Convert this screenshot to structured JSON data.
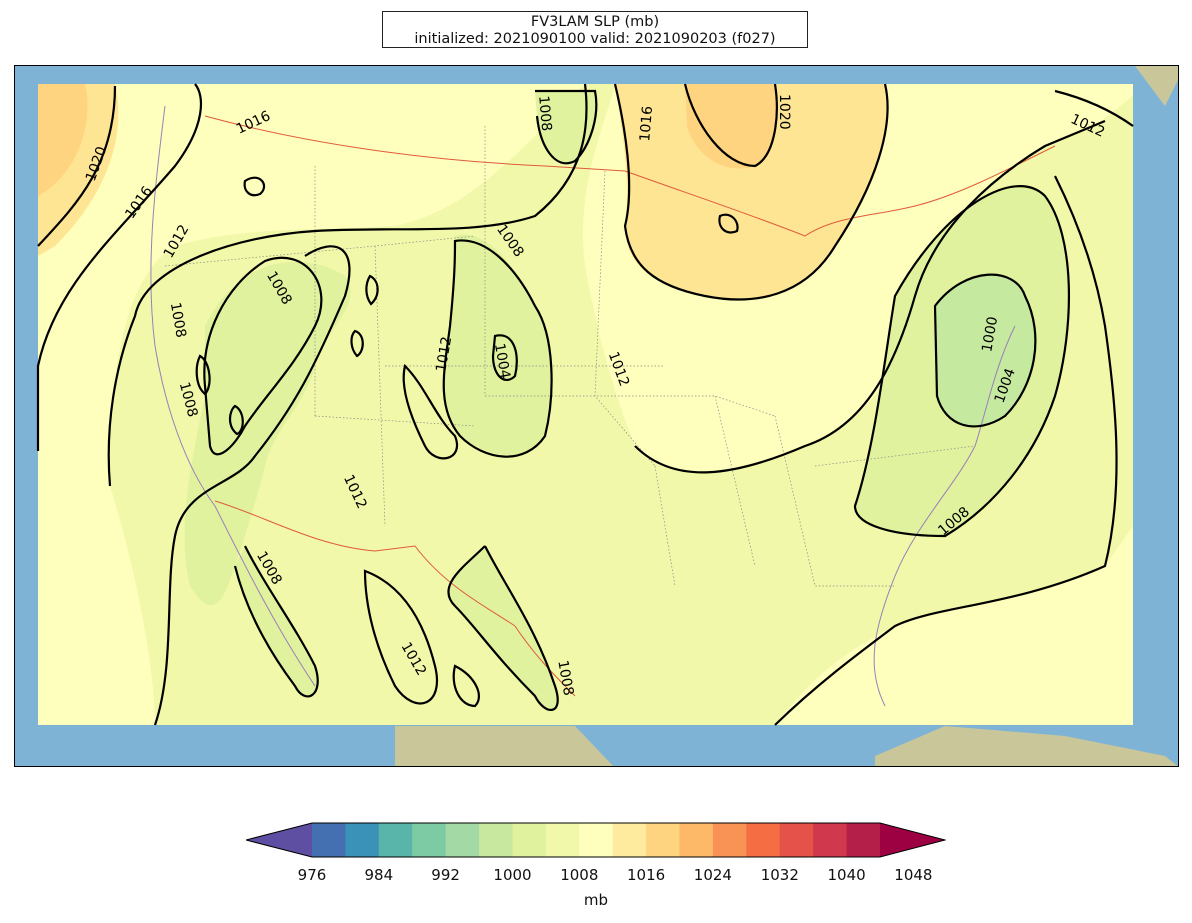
{
  "title": {
    "line1": "FV3LAM SLP (mb)",
    "line2": "initialized: 2021090100 valid: 2021090203 (f027)"
  },
  "map": {
    "contour_labels": [
      "1020",
      "1016",
      "1016",
      "1012",
      "1008",
      "1008",
      "1008",
      "1008",
      "1012",
      "1008",
      "1004",
      "1008",
      "1012",
      "1016",
      "1020",
      "1012",
      "1012",
      "1000",
      "1004",
      "1008",
      "1012",
      "1008"
    ],
    "colors": {
      "ocean": "#7fb3d5",
      "land": "#c9c79a",
      "fill_1016": "#fefebd",
      "fill_1012": "#f1f8a9",
      "fill_1008": "#e1f29e",
      "fill_1004": "#c6e9a0",
      "fill_1020": "#fee594",
      "fill_1024": "#fdd37c",
      "contour": "#000000",
      "border": "#e05a3a",
      "state": "#888888",
      "coast": "#9a7fb8"
    }
  },
  "colorbar": {
    "ticks": [
      "976",
      "984",
      "992",
      "1000",
      "1008",
      "1016",
      "1024",
      "1032",
      "1040",
      "1048"
    ],
    "label": "mb",
    "colors": [
      "#5e4fa2",
      "#4470b1",
      "#3b92b9",
      "#59b4aa",
      "#7ccba5",
      "#a3d9a4",
      "#c7e89e",
      "#e1f29e",
      "#f1f8a9",
      "#fefebd",
      "#feeb9d",
      "#fed480",
      "#fdb868",
      "#f99355",
      "#f46d43",
      "#e45249",
      "#d0384d",
      "#b31f48",
      "#9e0142"
    ],
    "under_color": "#5e4fa2",
    "over_color": "#9e0142"
  }
}
